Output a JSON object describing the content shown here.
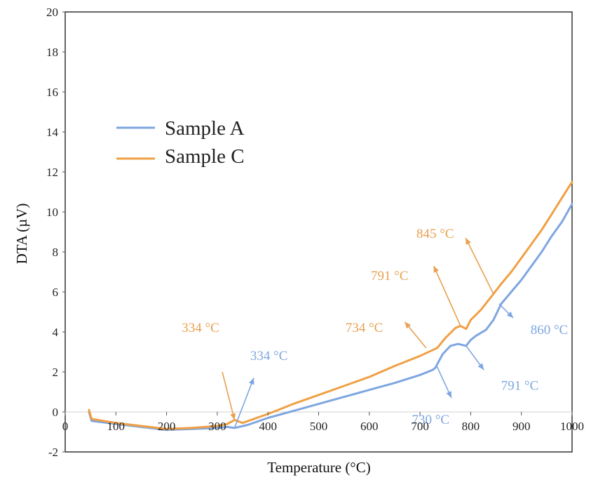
{
  "chart_data": {
    "type": "line",
    "title": "",
    "xlabel": "Temperature (°C)",
    "ylabel": "DTA (µV)",
    "xlim": [
      0,
      1000
    ],
    "ylim": [
      -2,
      20
    ],
    "x_ticks": [
      0,
      100,
      200,
      300,
      400,
      500,
      600,
      700,
      800,
      900,
      1000
    ],
    "y_ticks": [
      -2,
      0,
      2,
      4,
      6,
      8,
      10,
      12,
      14,
      16,
      18,
      20
    ],
    "grid": false,
    "legend_position": "left",
    "colors": {
      "sample_a": "#7EA6E0",
      "sample_c": "#F0A045",
      "zero_line": "#D9D9D9"
    },
    "series": [
      {
        "name": "Sample A",
        "color": "#7EA6E0",
        "x": [
          47,
          52,
          100,
          150,
          200,
          250,
          300,
          320,
          334,
          360,
          400,
          450,
          500,
          550,
          600,
          650,
          700,
          725,
          730,
          745,
          760,
          775,
          791,
          800,
          810,
          830,
          845,
          860,
          880,
          900,
          920,
          940,
          960,
          980,
          1000
        ],
        "y": [
          0.0,
          -0.45,
          -0.6,
          -0.75,
          -0.9,
          -0.85,
          -0.8,
          -0.75,
          -0.8,
          -0.65,
          -0.3,
          0.05,
          0.4,
          0.75,
          1.1,
          1.45,
          1.85,
          2.1,
          2.2,
          2.9,
          3.3,
          3.4,
          3.3,
          3.6,
          3.8,
          4.1,
          4.6,
          5.4,
          6.0,
          6.6,
          7.3,
          8.0,
          8.8,
          9.5,
          10.4
        ]
      },
      {
        "name": "Sample C",
        "color": "#F0A045",
        "x": [
          47,
          52,
          100,
          150,
          200,
          250,
          300,
          320,
          334,
          350,
          400,
          450,
          500,
          550,
          600,
          650,
          700,
          734,
          750,
          770,
          780,
          791,
          800,
          820,
          845,
          860,
          880,
          900,
          920,
          940,
          960,
          980,
          1000
        ],
        "y": [
          0.1,
          -0.35,
          -0.55,
          -0.7,
          -0.85,
          -0.8,
          -0.7,
          -0.6,
          -0.4,
          -0.55,
          -0.1,
          0.4,
          0.85,
          1.3,
          1.75,
          2.3,
          2.8,
          3.2,
          3.7,
          4.2,
          4.3,
          4.15,
          4.6,
          5.1,
          5.9,
          6.4,
          7.0,
          7.7,
          8.4,
          9.1,
          9.9,
          10.7,
          11.5
        ]
      }
    ],
    "annotations": [
      {
        "series": "Sample C",
        "text": "334 °C",
        "color": "#E8A050",
        "arrow_from": [
          310,
          2.0
        ],
        "arrow_to": [
          334,
          -0.4
        ],
        "text_at": [
          230,
          4.0
        ]
      },
      {
        "series": "Sample A",
        "text": "334 °C",
        "color": "#7EA6E0",
        "arrow_from": [
          334,
          -0.8
        ],
        "arrow_to": [
          372,
          1.7
        ],
        "text_at": [
          365,
          2.6
        ]
      },
      {
        "series": "Sample C",
        "text": "734 °C",
        "color": "#E8A050",
        "arrow_from": [
          712,
          3.2
        ],
        "arrow_to": [
          670,
          4.5
        ],
        "text_at": [
          553,
          4.0
        ]
      },
      {
        "series": "Sample C",
        "text": "791 °C",
        "color": "#E8A050",
        "arrow_from": [
          780,
          4.3
        ],
        "arrow_to": [
          727,
          7.3
        ],
        "text_at": [
          603,
          6.6
        ]
      },
      {
        "series": "Sample C",
        "text": "845 °C",
        "color": "#E8A050",
        "arrow_from": [
          845,
          5.9
        ],
        "arrow_to": [
          790,
          8.7
        ],
        "text_at": [
          693,
          8.7
        ]
      },
      {
        "series": "Sample A",
        "text": "730 °C",
        "color": "#7EA6E0",
        "arrow_from": [
          733,
          2.3
        ],
        "arrow_to": [
          762,
          0.7
        ],
        "text_at": [
          684,
          -0.6
        ]
      },
      {
        "series": "Sample A",
        "text": "791 °C",
        "color": "#7EA6E0",
        "arrow_from": [
          791,
          3.3
        ],
        "arrow_to": [
          826,
          2.1
        ],
        "text_at": [
          860,
          1.1
        ]
      },
      {
        "series": "Sample A",
        "text": "860 °C",
        "color": "#7EA6E0",
        "arrow_from": [
          856,
          5.4
        ],
        "arrow_to": [
          884,
          4.7
        ],
        "text_at": [
          918,
          3.9
        ]
      }
    ]
  }
}
